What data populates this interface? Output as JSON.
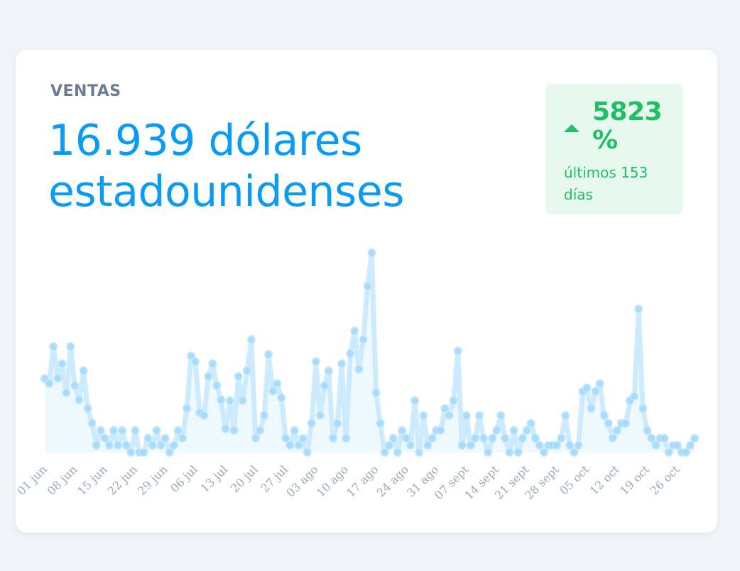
{
  "header": {
    "label": "VENTAS",
    "total": "16.939 dólares estadounidenses"
  },
  "badge": {
    "icon": "triangle-up-icon",
    "value": "5823 %",
    "subtitle": "últimos 153 días"
  },
  "colors": {
    "accent": "#0a9cf5",
    "line": "#bfe6fd",
    "point": "#99d5fb",
    "area": "#eef8ff",
    "positive": "#1fbf64",
    "badge_bg": "#e7f8ee",
    "muted": "#6b7d96",
    "tick": "#9aaab9",
    "page_bg": "#f0f3f7"
  },
  "chart_data": {
    "type": "area",
    "title": "VENTAS",
    "xlabel": "",
    "ylabel": "",
    "grid": false,
    "legend": "none",
    "x_tick_labels": [
      "01 jun",
      "08 jun",
      "15 jun",
      "22 jun",
      "29 jun",
      "06 jul",
      "13 jul",
      "20 jul",
      "27 jul",
      "03 ago",
      "10 ago",
      "17 ago",
      "24 ago",
      "31 ago",
      "07 sept",
      "14 sept",
      "21 sept",
      "28 sept",
      "05 oct",
      "12 oct",
      "19 oct",
      "26 oct"
    ],
    "x_start": "01 jun",
    "days": 153,
    "ylim": [
      0,
      290
    ],
    "values": [
      104,
      97,
      149,
      104,
      125,
      84,
      149,
      94,
      74,
      115,
      62,
      41,
      10,
      31,
      20,
      10,
      31,
      10,
      31,
      10,
      0,
      31,
      0,
      0,
      20,
      10,
      31,
      10,
      20,
      0,
      10,
      31,
      20,
      62,
      136,
      128,
      56,
      52,
      107,
      125,
      94,
      74,
      33,
      73,
      31,
      107,
      73,
      115,
      159,
      20,
      31,
      52,
      138,
      86,
      97,
      77,
      20,
      10,
      31,
      10,
      20,
      0,
      41,
      128,
      52,
      94,
      115,
      20,
      41,
      125,
      20,
      139,
      171,
      117,
      159,
      234,
      281,
      84,
      41,
      0,
      10,
      20,
      0,
      31,
      20,
      10,
      73,
      0,
      52,
      10,
      20,
      31,
      31,
      62,
      52,
      73,
      143,
      10,
      52,
      10,
      20,
      52,
      20,
      0,
      20,
      31,
      52,
      20,
      0,
      31,
      0,
      20,
      31,
      41,
      20,
      10,
      0,
      10,
      10,
      10,
      20,
      52,
      10,
      0,
      10,
      86,
      91,
      62,
      86,
      97,
      52,
      41,
      20,
      31,
      41,
      41,
      73,
      79,
      202,
      62,
      31,
      20,
      10,
      20,
      20,
      0,
      10,
      10,
      0,
      0,
      10,
      20
    ],
    "total_label": "16.939 dólares estadounidenses",
    "change_label": "5823 %",
    "period_label": "últimos 153 días"
  }
}
